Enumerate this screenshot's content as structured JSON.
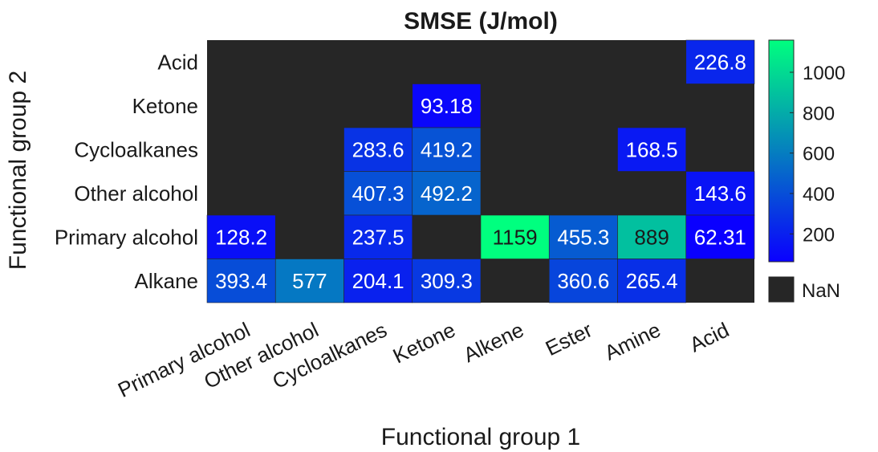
{
  "chart_data": {
    "type": "heatmap",
    "title": "SMSE (J/mol)",
    "xlabel": "Functional group 1",
    "ylabel": "Functional group 2",
    "x_categories": [
      "Primary alcohol",
      "Other alcohol",
      "Cycloalkanes",
      "Ketone",
      "Alkene",
      "Ester",
      "Amine",
      "Acid"
    ],
    "y_categories": [
      "Acid",
      "Ketone",
      "Cycloalkanes",
      "Other alcohol",
      "Primary alcohol",
      "Alkane"
    ],
    "values": [
      [
        null,
        null,
        null,
        null,
        null,
        null,
        null,
        226.8
      ],
      [
        null,
        null,
        null,
        93.18,
        null,
        null,
        null,
        null
      ],
      [
        null,
        null,
        283.6,
        419.2,
        null,
        null,
        168.5,
        null
      ],
      [
        null,
        null,
        407.3,
        492.2,
        null,
        null,
        null,
        143.6
      ],
      [
        128.2,
        null,
        237.5,
        null,
        1159,
        455.3,
        889,
        62.31
      ],
      [
        393.4,
        577,
        204.1,
        309.3,
        null,
        360.6,
        265.4,
        null
      ]
    ],
    "value_labels": [
      [
        "",
        "",
        "",
        "",
        "",
        "",
        "",
        "226.8"
      ],
      [
        "",
        "",
        "",
        "93.18",
        "",
        "",
        "",
        ""
      ],
      [
        "",
        "",
        "283.6",
        "419.2",
        "",
        "",
        "168.5",
        ""
      ],
      [
        "",
        "",
        "407.3",
        "492.2",
        "",
        "",
        "",
        "143.6"
      ],
      [
        "128.2",
        "",
        "237.5",
        "",
        "1159",
        "455.3",
        "889",
        "62.31"
      ],
      [
        "393.4",
        "577",
        "204.1",
        "309.3",
        "",
        "360.6",
        "265.4",
        ""
      ]
    ],
    "colorbar": {
      "range": [
        62.31,
        1159
      ],
      "ticks": [
        200,
        400,
        600,
        800,
        1000
      ],
      "tick_labels": [
        "200",
        "400",
        "600",
        "800",
        "1000"
      ],
      "colors": [
        "#0a00ff",
        "#00ff7f"
      ]
    },
    "nan_color": "#262626",
    "nan_label": "NaN"
  }
}
